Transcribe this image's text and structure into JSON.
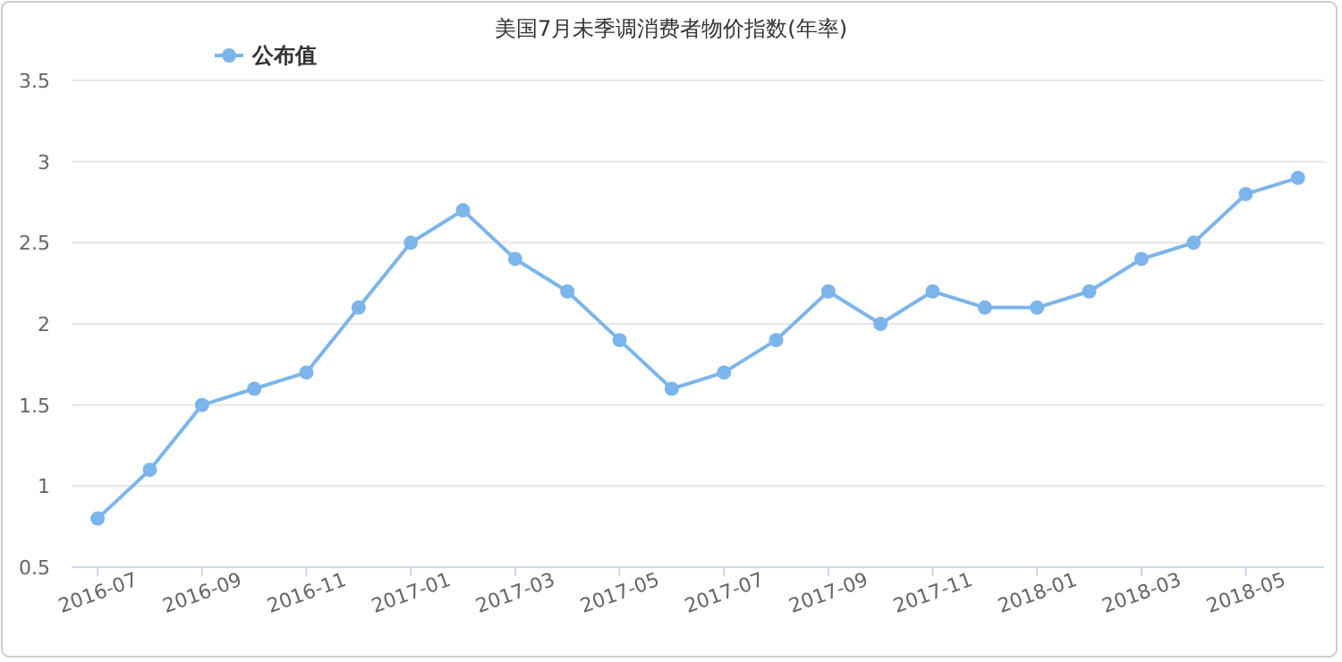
{
  "chart_data": {
    "type": "line",
    "title": "美国7月未季调消费者物价指数(年率)",
    "categories": [
      "2016-07",
      null,
      "2016-09",
      null,
      "2016-11",
      null,
      "2017-01",
      null,
      "2017-03",
      null,
      "2017-05",
      null,
      "2017-07",
      null,
      "2017-09",
      null,
      "2017-11",
      null,
      "2018-01",
      null,
      "2018-03",
      null,
      "2018-05",
      null
    ],
    "series": [
      {
        "name": "公布值",
        "color": "#7cb5ec",
        "values": [
          0.8,
          1.1,
          1.5,
          1.6,
          1.7,
          2.1,
          2.5,
          2.7,
          2.4,
          2.2,
          1.9,
          1.6,
          1.7,
          1.9,
          2.2,
          2.0,
          2.2,
          2.1,
          2.1,
          2.2,
          2.4,
          2.5,
          2.8,
          2.9
        ]
      }
    ],
    "ylim": [
      0.5,
      3.5
    ],
    "yticks": [
      0.5,
      1,
      1.5,
      2,
      2.5,
      3,
      3.5
    ],
    "grid": "y",
    "legend": "top left",
    "marker": "circle",
    "line_style": "solid"
  }
}
